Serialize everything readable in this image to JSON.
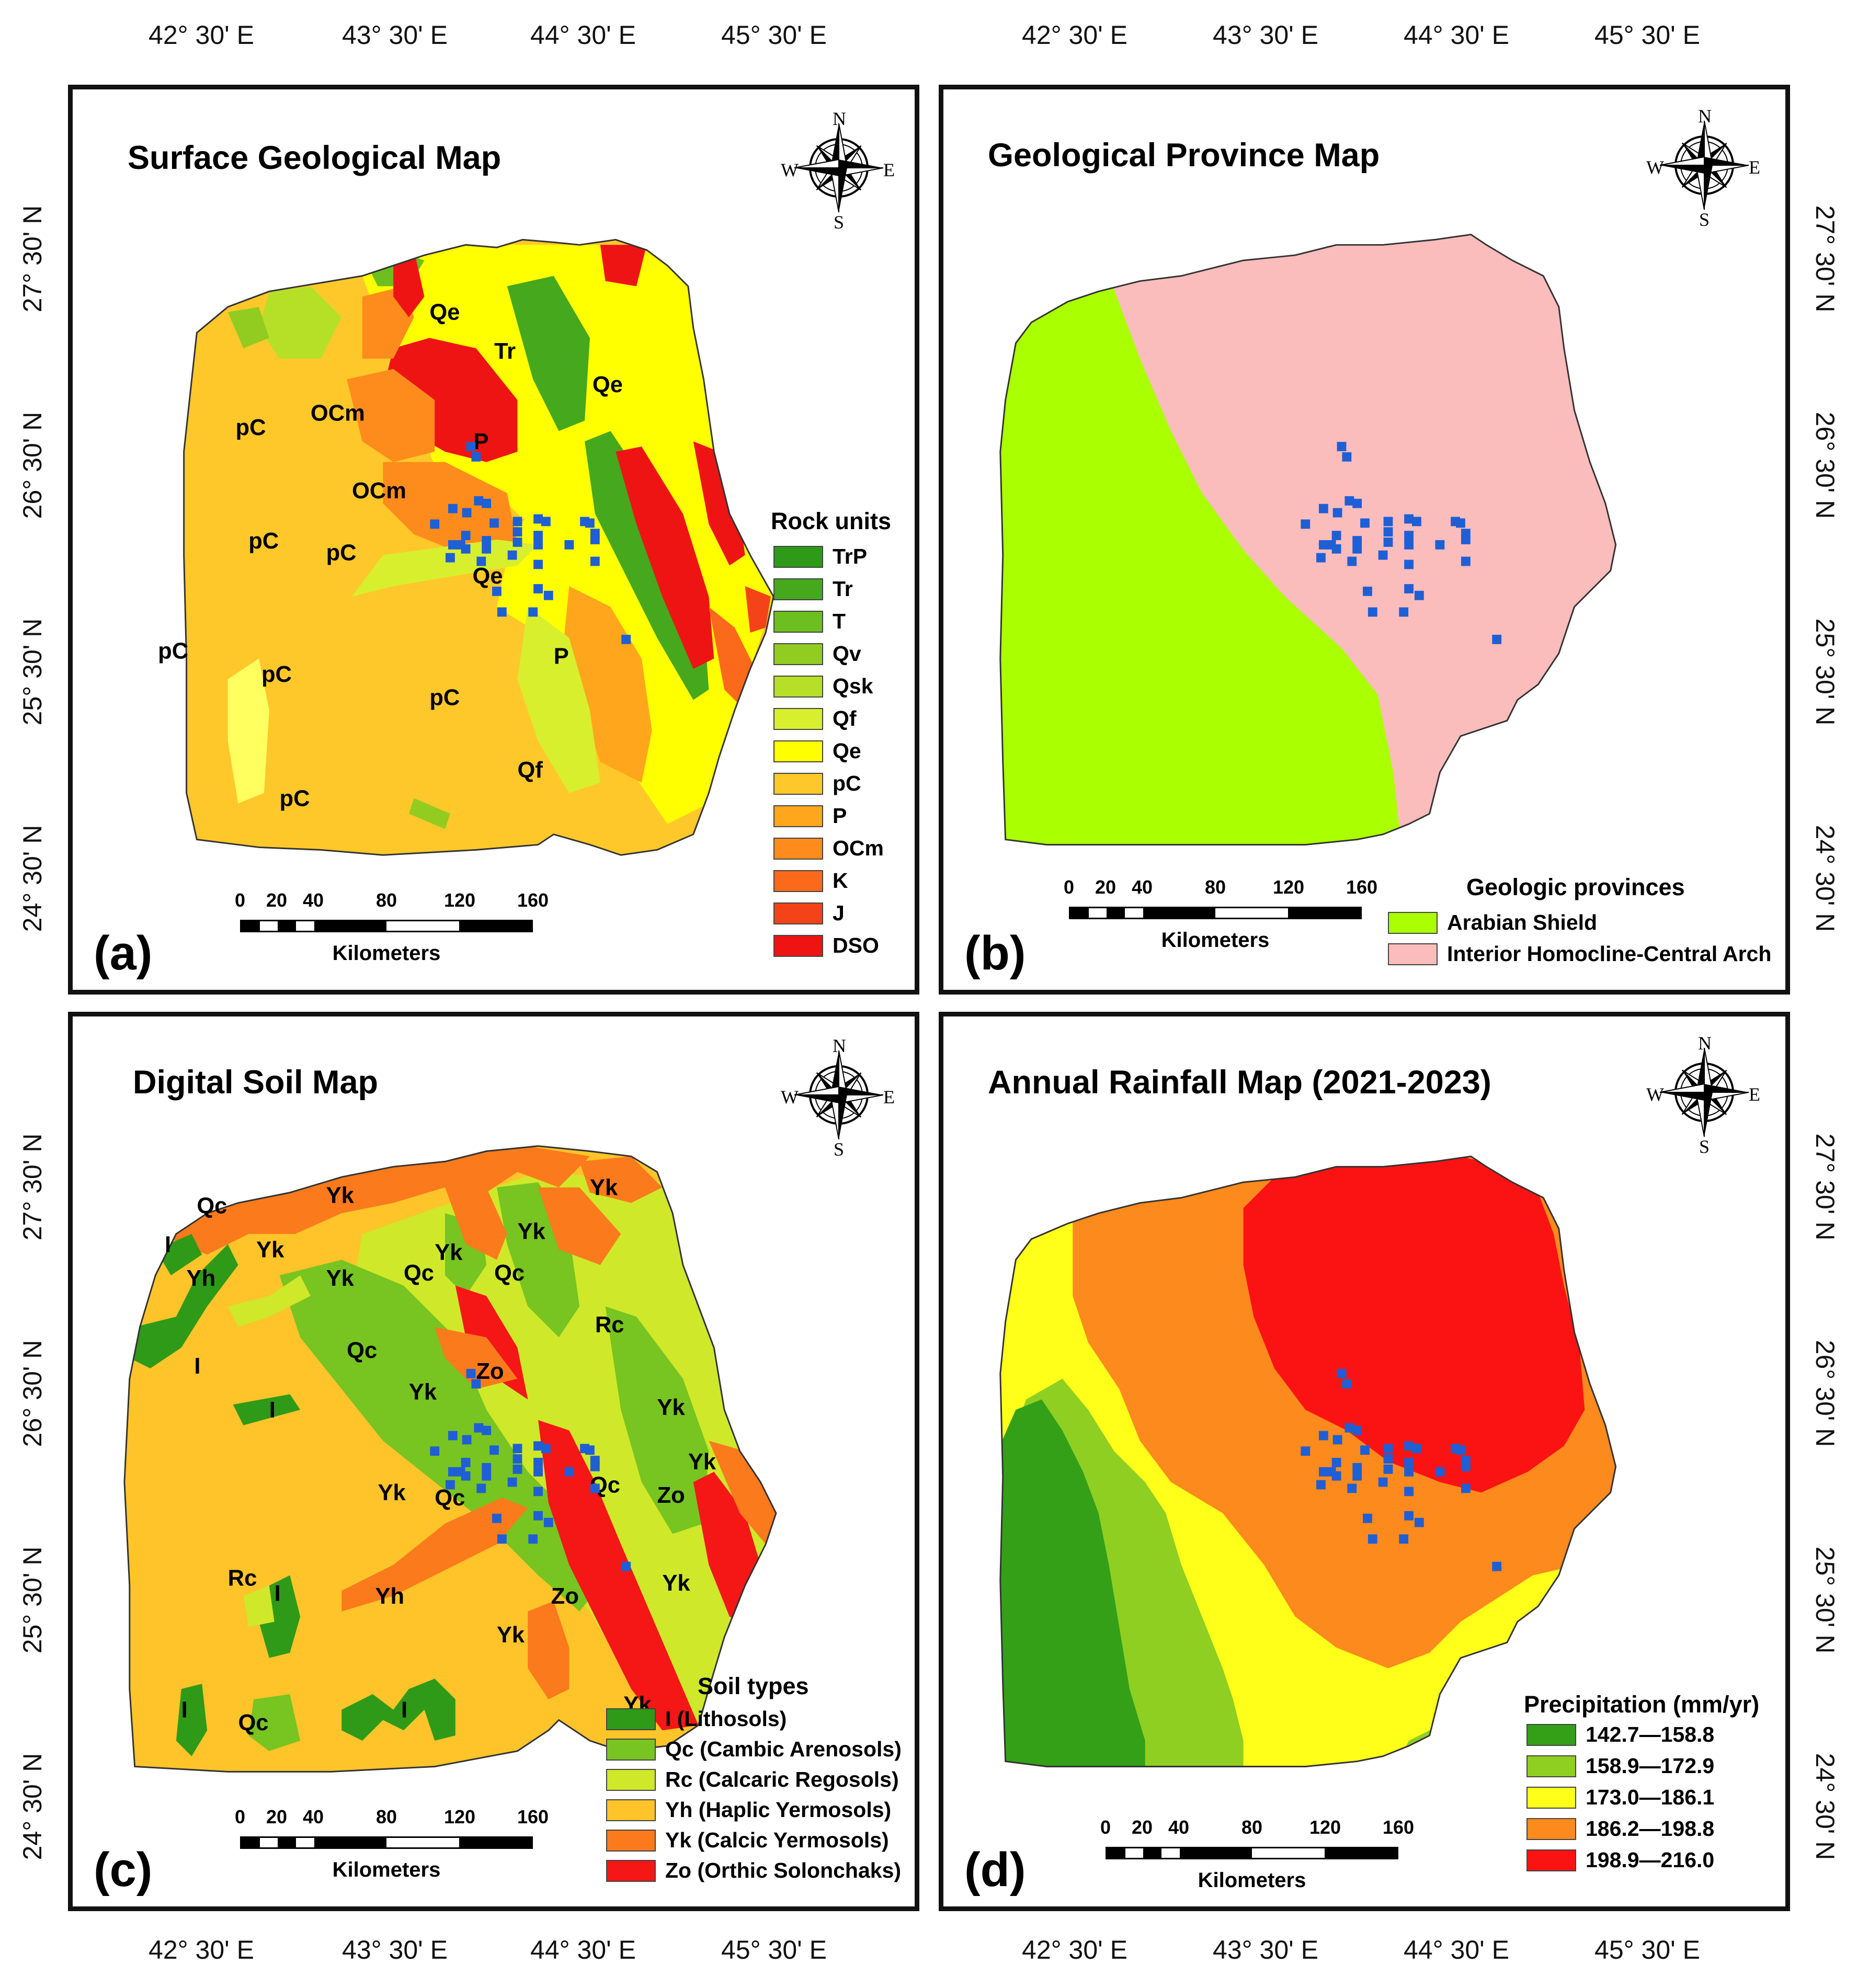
{
  "coordinates": {
    "longitudes": [
      "42° 30' E",
      "43° 30' E",
      "44° 30' E",
      "45° 30' E"
    ],
    "latitudes": [
      "27° 30' N",
      "26° 30' N",
      "25° 30' N",
      "24° 30' N"
    ]
  },
  "scale_bar": {
    "ticks": [
      "0",
      "20",
      "40",
      "80",
      "120",
      "160"
    ],
    "units": "Kilometers"
  },
  "compass": {
    "n": "N",
    "s": "S",
    "e": "E",
    "w": "W"
  },
  "colors": {
    "station_marker": "#1f5fd6",
    "panel_border": "#111111"
  },
  "panels": {
    "a": {
      "letter": "(a)",
      "title": "Surface Geological Map",
      "legend_title": "Rock units",
      "legend": [
        {
          "label": "TrP",
          "color": "#2e9a18"
        },
        {
          "label": "Tr",
          "color": "#46a81c"
        },
        {
          "label": "T",
          "color": "#6cbf1e"
        },
        {
          "label": "Qv",
          "color": "#93cc20"
        },
        {
          "label": "Qsk",
          "color": "#b6df28"
        },
        {
          "label": "Qf",
          "color": "#d8ef2e"
        },
        {
          "label": "Qe",
          "color": "#ffff00"
        },
        {
          "label": "pC",
          "color": "#ffc82a"
        },
        {
          "label": "P",
          "color": "#ffa61c"
        },
        {
          "label": "OCm",
          "color": "#fd8c1c"
        },
        {
          "label": "K",
          "color": "#fb6a1a"
        },
        {
          "label": "J",
          "color": "#f44318"
        },
        {
          "label": "DSO",
          "color": "#ee1414"
        }
      ],
      "labels": [
        "Qe",
        "Tr",
        "Qe",
        "pC",
        "OCm",
        "P",
        "OCm",
        "pC",
        "pC",
        "Qe",
        "pC",
        "pC",
        "P",
        "pC",
        "Qf",
        "pC"
      ]
    },
    "b": {
      "letter": "(b)",
      "title": "Geological Province Map",
      "legend_title": "Geologic provinces",
      "legend": [
        {
          "label": "Arabian Shield",
          "color": "#aaff00"
        },
        {
          "label": "Interior Homocline-Central Arch",
          "color": "#fbbcbc"
        }
      ]
    },
    "c": {
      "letter": "(c)",
      "title": "Digital Soil Map",
      "legend_title": "Soil types",
      "legend": [
        {
          "label": "I (Lithosols)",
          "color": "#2e9a18"
        },
        {
          "label": "Qc (Cambic Arenosols)",
          "color": "#78c421"
        },
        {
          "label": "Rc (Calcaric Regosols)",
          "color": "#cfe82a"
        },
        {
          "label": "Yh (Haplic Yermosols)",
          "color": "#ffc42a"
        },
        {
          "label": "Yk (Calcic Yermosols)",
          "color": "#fb7a1c"
        },
        {
          "label": "Zo (Orthic Solonchaks)",
          "color": "#f51616"
        }
      ],
      "labels": [
        "Qc",
        "Yk",
        "Yk",
        "I",
        "Yh",
        "Yk",
        "Yk",
        "Qc",
        "Yk",
        "Qc",
        "Yk",
        "Rc",
        "Qc",
        "I",
        "Zo",
        "I",
        "Yk",
        "Yk",
        "Yk",
        "Qc",
        "Qc",
        "Zo",
        "Yk",
        "Rc",
        "I",
        "Yh",
        "Zo",
        "Yk",
        "Yk",
        "I",
        "Qc",
        "I",
        "Yk"
      ]
    },
    "d": {
      "letter": "(d)",
      "title": "Annual Rainfall Map (2021-2023)",
      "legend_title": "Precipitation (mm/yr)",
      "legend": [
        {
          "label": "142.7—158.8",
          "color": "#33a018"
        },
        {
          "label": "158.9—172.9",
          "color": "#8ecf22"
        },
        {
          "label": "173.0—186.1",
          "color": "#ffff1a"
        },
        {
          "label": "186.2—198.8",
          "color": "#fd8a1c"
        },
        {
          "label": "198.9—216.0",
          "color": "#fb1313"
        }
      ]
    }
  }
}
